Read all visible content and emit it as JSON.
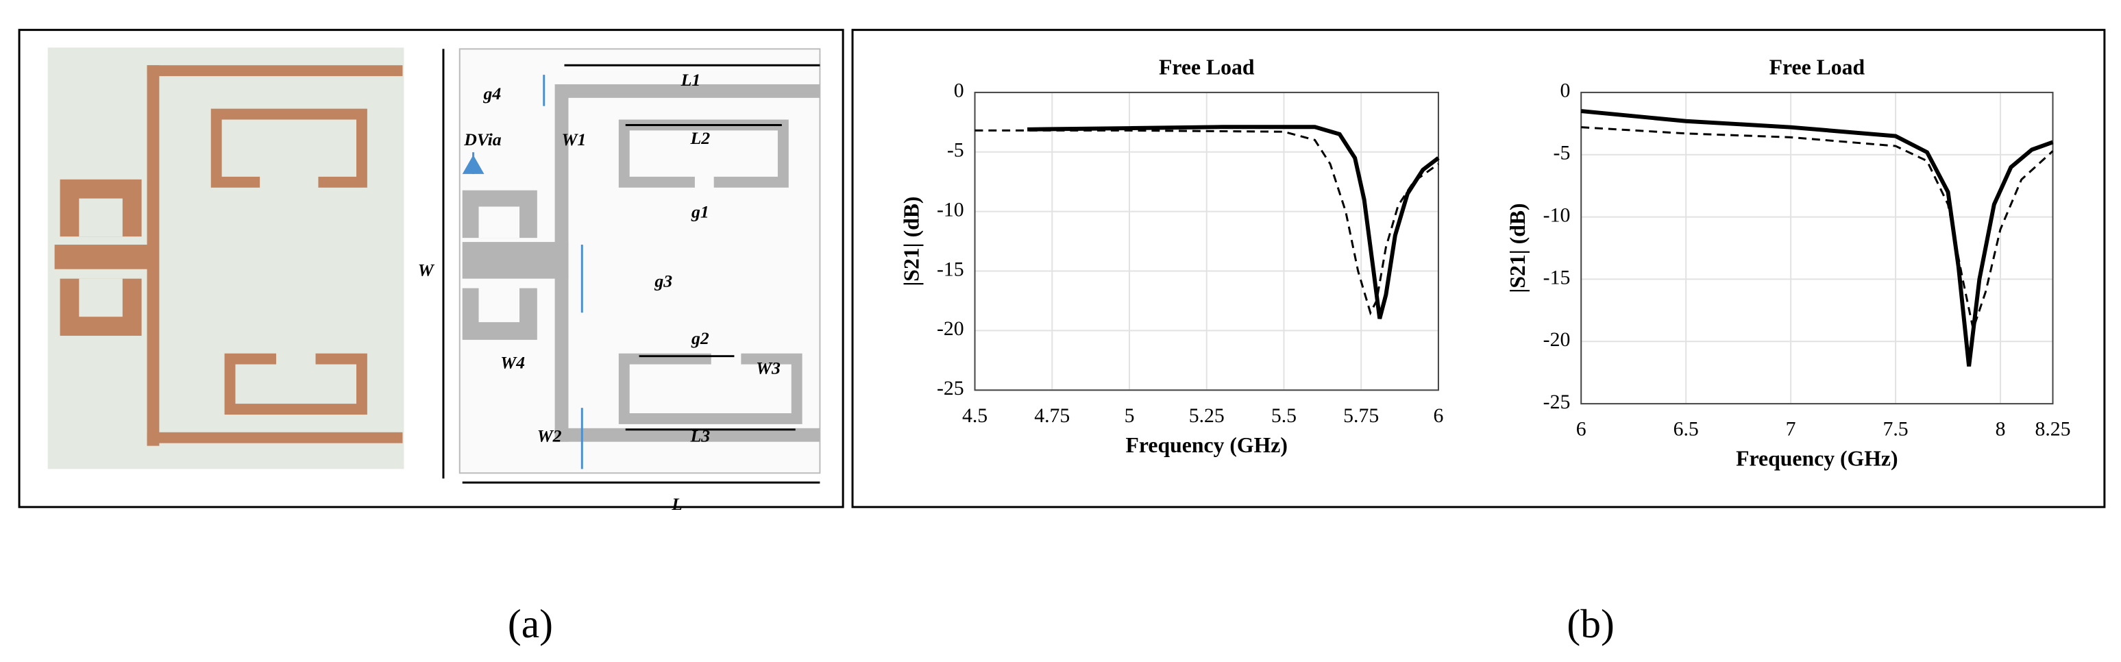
{
  "chart_data": [
    {
      "type": "line",
      "title": "Free Load",
      "xlabel": "Frequency (GHz)",
      "ylabel": "|S21| (dB)",
      "xlim": [
        4.5,
        6
      ],
      "xticks": [
        4.5,
        4.75,
        5,
        5.25,
        5.5,
        5.75,
        6
      ],
      "ylim": [
        -25,
        0
      ],
      "yticks": [
        0,
        -5,
        -10,
        -15,
        -20,
        -25
      ],
      "grid": true,
      "series": [
        {
          "color": "#000",
          "linestyle": "solid",
          "x": [
            4.67,
            5,
            5.3,
            5.6,
            5.68,
            5.73,
            5.76,
            5.79,
            5.81,
            5.83,
            5.86,
            5.9,
            5.95,
            6
          ],
          "values": [
            -3.1,
            -3,
            -2.9,
            -2.9,
            -3.5,
            -5.5,
            -9,
            -15,
            -19,
            -17,
            -12,
            -8.5,
            -6.5,
            -5.5
          ]
        },
        {
          "color": "#000",
          "linestyle": "dashed",
          "x": [
            4.5,
            5,
            5.5,
            5.6,
            5.65,
            5.7,
            5.74,
            5.78,
            5.8,
            5.83,
            5.87,
            5.92,
            6
          ],
          "values": [
            -3.2,
            -3.2,
            -3.3,
            -4,
            -6,
            -10,
            -15,
            -18.5,
            -17.5,
            -13,
            -9.5,
            -7.5,
            -6
          ]
        }
      ]
    },
    {
      "type": "line",
      "title": "Free Load",
      "xlabel": "Frequency (GHz)",
      "ylabel": "|S21| (dB)",
      "xlim": [
        6,
        8.25
      ],
      "xticks": [
        6,
        6.5,
        7,
        7.5,
        8,
        8.25
      ],
      "ylim": [
        -25,
        0
      ],
      "yticks": [
        0,
        -5,
        -10,
        -15,
        -20,
        -25
      ],
      "grid": true,
      "series": [
        {
          "color": "#000",
          "linestyle": "solid",
          "x": [
            6,
            6.5,
            7,
            7.5,
            7.65,
            7.75,
            7.8,
            7.85,
            7.9,
            7.97,
            8.05,
            8.15,
            8.25
          ],
          "values": [
            -1.5,
            -2.3,
            -2.8,
            -3.5,
            -4.8,
            -8,
            -14,
            -22,
            -15,
            -9,
            -6,
            -4.6,
            -4
          ]
        },
        {
          "color": "#000",
          "linestyle": "dashed",
          "x": [
            6,
            6.5,
            7,
            7.5,
            7.65,
            7.75,
            7.82,
            7.87,
            7.93,
            8,
            8.1,
            8.25
          ],
          "values": [
            -2.8,
            -3.3,
            -3.6,
            -4.3,
            -5.5,
            -9,
            -15,
            -19,
            -16,
            -11,
            -7,
            -4.7
          ]
        }
      ]
    }
  ],
  "diagram": {
    "labels": [
      "g4",
      "L1",
      "DVia",
      "W1",
      "L2",
      "g1",
      "W",
      "g3",
      "g2",
      "W3",
      "W4",
      "W2",
      "L3",
      "L"
    ]
  },
  "captions": [
    "(a)",
    "(b)"
  ]
}
